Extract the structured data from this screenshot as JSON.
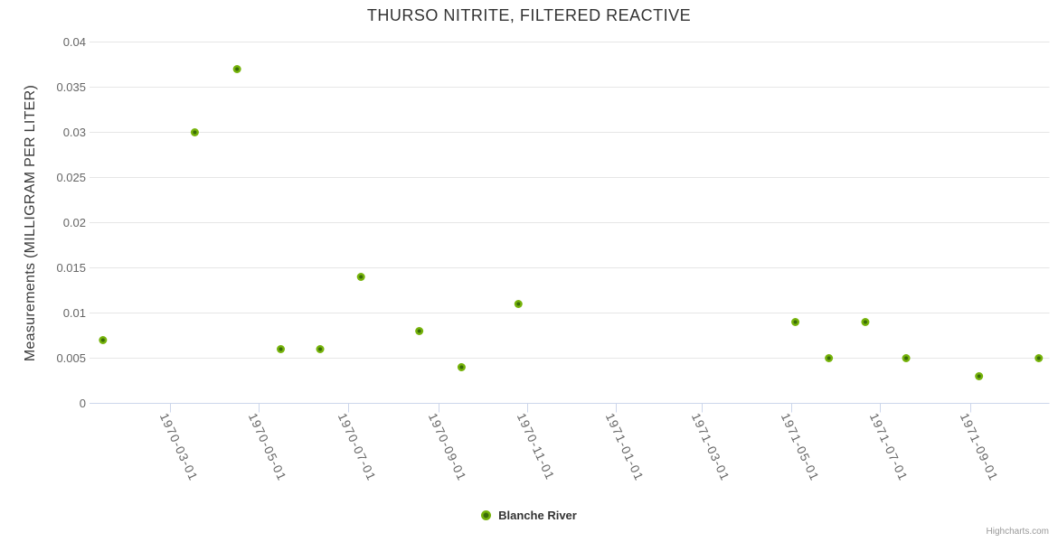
{
  "title": "THURSO NITRITE, FILTERED REACTIVE",
  "credits_label": "Highcharts.com",
  "legend": {
    "label": "Blanche River"
  },
  "colors": {
    "marker_outer": "#76b30b",
    "marker_center": "#3a6c08",
    "grid": "#e6e6e6",
    "axis_line": "#ccd6eb",
    "title_text": "#333333",
    "axis_label": "#666666",
    "credits_text": "#999999"
  },
  "chart_data": {
    "type": "scatter",
    "title": "THURSO NITRITE, FILTERED REACTIVE",
    "xlabel": "",
    "ylabel": "Measurements (MILLIGRAM PER LITER)",
    "x_axis_type": "datetime",
    "x_tick_labels": [
      "1970-03-01",
      "1970-05-01",
      "1970-07-01",
      "1970-09-01",
      "1970-11-01",
      "1971-01-01",
      "1971-03-01",
      "1971-05-01",
      "1971-07-01",
      "1971-09-01"
    ],
    "y_tick_labels": [
      "0",
      "0.005",
      "0.01",
      "0.015",
      "0.02",
      "0.025",
      "0.03",
      "0.035",
      "0.04"
    ],
    "y_tick_values": [
      0,
      0.005,
      0.01,
      0.015,
      0.02,
      0.025,
      0.03,
      0.035,
      0.04
    ],
    "ylim": [
      0,
      0.04
    ],
    "grid": "horizontal",
    "legend_position": "bottom-center",
    "series": [
      {
        "name": "Blanche River",
        "color": "#76b30b",
        "points": [
          {
            "date": "1970-01-14",
            "value": 0.007
          },
          {
            "date": "1970-03-18",
            "value": 0.03
          },
          {
            "date": "1970-04-16",
            "value": 0.037
          },
          {
            "date": "1970-05-16",
            "value": 0.006
          },
          {
            "date": "1970-06-12",
            "value": 0.006
          },
          {
            "date": "1970-07-10",
            "value": 0.014
          },
          {
            "date": "1970-08-19",
            "value": 0.008
          },
          {
            "date": "1970-09-17",
            "value": 0.004
          },
          {
            "date": "1970-10-26",
            "value": 0.011
          },
          {
            "date": "1971-05-04",
            "value": 0.009
          },
          {
            "date": "1971-05-27",
            "value": 0.005
          },
          {
            "date": "1971-06-21",
            "value": 0.009
          },
          {
            "date": "1971-07-19",
            "value": 0.005
          },
          {
            "date": "1971-09-07",
            "value": 0.003
          },
          {
            "date": "1971-10-18",
            "value": 0.005
          }
        ]
      }
    ]
  }
}
